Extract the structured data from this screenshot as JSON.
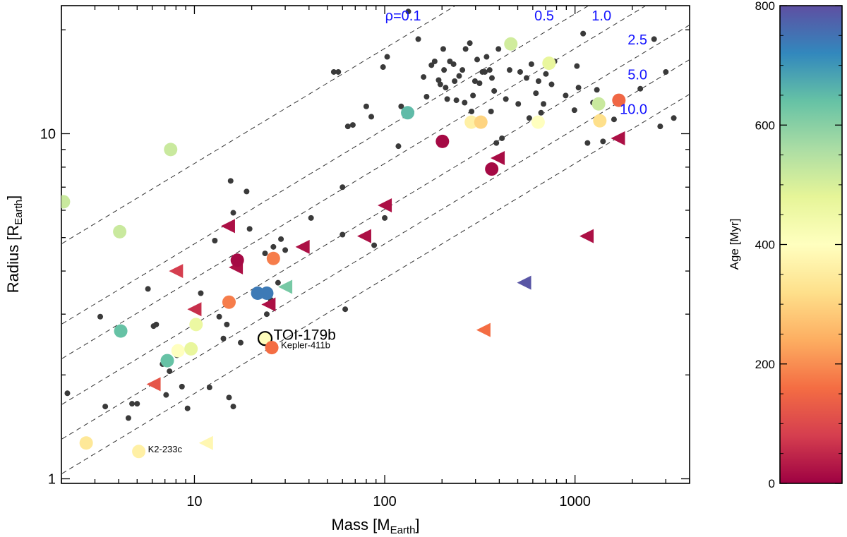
{
  "chart_data": {
    "type": "scatter",
    "title": "",
    "xlabel": "Mass [M",
    "xlabel_sub": "Earth",
    "xlabel_close": "]",
    "ylabel": "Radius [R",
    "ylabel_sub": "Earth",
    "ylabel_close": "]",
    "xscale": "log",
    "yscale": "log",
    "xlim": [
      2,
      4000
    ],
    "ylim": [
      0.97,
      23.5
    ],
    "x_tick_labels": [
      {
        "value": 10,
        "label": "10"
      },
      {
        "value": 100,
        "label": "100"
      },
      {
        "value": 1000,
        "label": "1000"
      }
    ],
    "y_tick_labels": [
      {
        "value": 1,
        "label": "1"
      },
      {
        "value": 10,
        "label": "10"
      }
    ],
    "density_lines": [
      {
        "rho": 0.1,
        "label": "ρ=0.1"
      },
      {
        "rho": 0.5,
        "label": "0.5"
      },
      {
        "rho": 1.0,
        "label": "1.0"
      },
      {
        "rho": 2.5,
        "label": "2.5"
      },
      {
        "rho": 5.0,
        "label": "5.0"
      },
      {
        "rho": 10.0,
        "label": "10.0"
      }
    ],
    "density_label_color": "#1414ff",
    "colorbar": {
      "label": "Age [Myr]",
      "range": [
        0,
        800
      ],
      "ticks": [
        0,
        200,
        400,
        600,
        800
      ],
      "stops": [
        "#9e0142",
        "#d53e4f",
        "#f46d43",
        "#fdae61",
        "#fee08b",
        "#ffffbf",
        "#e6f598",
        "#abdda4",
        "#66c2a5",
        "#3288bd",
        "#5e4fa2"
      ]
    },
    "background_planets": [
      [
        2.15,
        1.77
      ],
      [
        3.2,
        2.95
      ],
      [
        3.4,
        1.62
      ],
      [
        4.5,
        1.5
      ],
      [
        4.7,
        1.65
      ],
      [
        5.0,
        1.65
      ],
      [
        5.7,
        3.55
      ],
      [
        6.1,
        2.77
      ],
      [
        6.3,
        2.8
      ],
      [
        6.8,
        2.15
      ],
      [
        7.1,
        1.75
      ],
      [
        7.4,
        2.05
      ],
      [
        8.1,
        2.28
      ],
      [
        8.6,
        1.85
      ],
      [
        9.2,
        1.6
      ],
      [
        10.8,
        3.45
      ],
      [
        12.0,
        1.84
      ],
      [
        12.8,
        4.9
      ],
      [
        13.5,
        2.95
      ],
      [
        14.2,
        2.55
      ],
      [
        14.8,
        2.8
      ],
      [
        15.2,
        1.72
      ],
      [
        15.5,
        7.3
      ],
      [
        16.0,
        5.9
      ],
      [
        16.0,
        1.62
      ],
      [
        16.5,
        4.3
      ],
      [
        17.5,
        2.48
      ],
      [
        18.8,
        6.8
      ],
      [
        19.5,
        5.3
      ],
      [
        23.5,
        4.5
      ],
      [
        24.0,
        3.0
      ],
      [
        25.2,
        3.3
      ],
      [
        26.0,
        4.7
      ],
      [
        27.5,
        3.7
      ],
      [
        28.5,
        4.95
      ],
      [
        30.0,
        4.6
      ],
      [
        41.0,
        5.7
      ],
      [
        54.0,
        15.1
      ],
      [
        57.0,
        15.1
      ],
      [
        60.0,
        5.1
      ],
      [
        60.0,
        7.0
      ],
      [
        62.0,
        3.1
      ],
      [
        64.0,
        10.5
      ],
      [
        68.0,
        10.6
      ],
      [
        80.0,
        12.0
      ],
      [
        85.0,
        11.2
      ],
      [
        88.0,
        4.75
      ],
      [
        98.0,
        15.6
      ],
      [
        100.0,
        5.7
      ],
      [
        103.0,
        16.7
      ],
      [
        118.0,
        9.2
      ],
      [
        122.0,
        12.0
      ],
      [
        133.0,
        22.6
      ],
      [
        150.0,
        18.8
      ],
      [
        160.0,
        14.6
      ],
      [
        166.0,
        12.8
      ],
      [
        176.0,
        15.8
      ],
      [
        183.0,
        16.2
      ],
      [
        192.0,
        14.3
      ],
      [
        196.0,
        13.9
      ],
      [
        203.0,
        17.6
      ],
      [
        205.0,
        15.3
      ],
      [
        209.0,
        13.6
      ],
      [
        213.0,
        12.6
      ],
      [
        220.0,
        16.2
      ],
      [
        230.0,
        15.9
      ],
      [
        233.0,
        14.2
      ],
      [
        238.0,
        12.5
      ],
      [
        246.0,
        14.7
      ],
      [
        256.0,
        15.3
      ],
      [
        263.0,
        12.3
      ],
      [
        266.0,
        17.6
      ],
      [
        280.0,
        18.3
      ],
      [
        286.0,
        11.6
      ],
      [
        291.0,
        12.9
      ],
      [
        298.0,
        14.2
      ],
      [
        306.0,
        16.4
      ],
      [
        315.0,
        14.0
      ],
      [
        326.0,
        15.1
      ],
      [
        336.0,
        15.1
      ],
      [
        343.0,
        16.7
      ],
      [
        356.0,
        15.3
      ],
      [
        362.0,
        11.6
      ],
      [
        366.0,
        14.5
      ],
      [
        376.0,
        13.3
      ],
      [
        386.0,
        9.4
      ],
      [
        396.0,
        17.6
      ],
      [
        413.0,
        9.7
      ],
      [
        433.0,
        12.6
      ],
      [
        453.0,
        15.3
      ],
      [
        503.0,
        12.2
      ],
      [
        515.0,
        15.1
      ],
      [
        556.0,
        14.5
      ],
      [
        575.0,
        11.1
      ],
      [
        590.0,
        15.9
      ],
      [
        623.0,
        13.1
      ],
      [
        643.0,
        14.2
      ],
      [
        663.0,
        11.5
      ],
      [
        683.0,
        12.2
      ],
      [
        703.0,
        14.9
      ],
      [
        753.0,
        13.9
      ],
      [
        780.0,
        16.2
      ],
      [
        893.0,
        12.9
      ],
      [
        993.0,
        11.7
      ],
      [
        1023.0,
        15.7
      ],
      [
        1043.0,
        13.6
      ],
      [
        1103.0,
        19.5
      ],
      [
        1163.0,
        9.4
      ],
      [
        1243.0,
        12.3
      ],
      [
        1303.0,
        13.4
      ],
      [
        1403.0,
        9.5
      ],
      [
        1603.0,
        11.0
      ],
      [
        2203.0,
        13.5
      ],
      [
        2803.0,
        10.5
      ],
      [
        2603.0,
        18.8
      ],
      [
        3303.0,
        11.1
      ],
      [
        3000.0,
        15.1
      ]
    ],
    "young_planets": [
      {
        "mass": 2.05,
        "radius": 6.35,
        "age": 520,
        "marker": "circle"
      },
      {
        "mass": 2.7,
        "radius": 1.27,
        "age": 340,
        "marker": "circle"
      },
      {
        "mass": 4.05,
        "radius": 5.2,
        "age": 520,
        "marker": "circle"
      },
      {
        "mass": 4.1,
        "radius": 2.68,
        "age": 640,
        "marker": "circle"
      },
      {
        "mass": 5.1,
        "radius": 1.2,
        "age": 360,
        "marker": "circle"
      },
      {
        "mass": 6.1,
        "radius": 1.88,
        "age": 120,
        "marker": "triangle"
      },
      {
        "mass": 7.2,
        "radius": 2.2,
        "age": 640,
        "marker": "circle"
      },
      {
        "mass": 7.5,
        "radius": 9.0,
        "age": 520,
        "marker": "circle"
      },
      {
        "mass": 8.0,
        "radius": 4.0,
        "age": 80,
        "marker": "triangle"
      },
      {
        "mass": 8.2,
        "radius": 2.35,
        "age": 400,
        "marker": "circle"
      },
      {
        "mass": 9.6,
        "radius": 2.38,
        "age": 470,
        "marker": "circle"
      },
      {
        "mass": 10.0,
        "radius": 3.1,
        "age": 60,
        "marker": "triangle"
      },
      {
        "mass": 10.2,
        "radius": 2.8,
        "age": 460,
        "marker": "circle"
      },
      {
        "mass": 11.5,
        "radius": 1.27,
        "age": 380,
        "marker": "triangle"
      },
      {
        "mass": 15.0,
        "radius": 5.4,
        "age": 20,
        "marker": "triangle"
      },
      {
        "mass": 15.2,
        "radius": 3.25,
        "age": 180,
        "marker": "circle"
      },
      {
        "mass": 16.5,
        "radius": 4.1,
        "age": 20,
        "marker": "triangle"
      },
      {
        "mass": 16.8,
        "radius": 4.3,
        "age": 10,
        "marker": "circle"
      },
      {
        "mass": 21.5,
        "radius": 3.45,
        "age": 740,
        "marker": "circle"
      },
      {
        "mass": 24.0,
        "radius": 3.45,
        "age": 740,
        "marker": "circle"
      },
      {
        "mass": 24.5,
        "radius": 3.2,
        "age": 20,
        "marker": "triangle"
      },
      {
        "mass": 26.0,
        "radius": 4.35,
        "age": 180,
        "marker": "circle"
      },
      {
        "mass": 30.0,
        "radius": 3.6,
        "age": 620,
        "marker": "triangle"
      },
      {
        "mass": 37.0,
        "radius": 4.7,
        "age": 20,
        "marker": "triangle"
      },
      {
        "mass": 78.0,
        "radius": 5.05,
        "age": 20,
        "marker": "triangle"
      },
      {
        "mass": 100.0,
        "radius": 6.2,
        "age": 20,
        "marker": "triangle"
      },
      {
        "mass": 132.0,
        "radius": 11.5,
        "age": 650,
        "marker": "circle"
      },
      {
        "mass": 201.0,
        "radius": 9.5,
        "age": 10,
        "marker": "circle"
      },
      {
        "mass": 285.0,
        "radius": 10.8,
        "age": 360,
        "marker": "circle"
      },
      {
        "mass": 320.0,
        "radius": 10.8,
        "age": 300,
        "marker": "circle"
      },
      {
        "mass": 330.0,
        "radius": 2.7,
        "age": 160,
        "marker": "triangle"
      },
      {
        "mass": 365.0,
        "radius": 7.9,
        "age": 10,
        "marker": "circle"
      },
      {
        "mass": 392.0,
        "radius": 8.5,
        "age": 15,
        "marker": "triangle"
      },
      {
        "mass": 460.0,
        "radius": 18.2,
        "age": 510,
        "marker": "circle"
      },
      {
        "mass": 540.0,
        "radius": 3.7,
        "age": 790,
        "marker": "triangle"
      },
      {
        "mass": 640.0,
        "radius": 10.8,
        "age": 400,
        "marker": "circle"
      },
      {
        "mass": 730.0,
        "radius": 16.0,
        "age": 470,
        "marker": "circle"
      },
      {
        "mass": 1150.0,
        "radius": 5.05,
        "age": 20,
        "marker": "triangle"
      },
      {
        "mass": 1330.0,
        "radius": 12.2,
        "age": 520,
        "marker": "circle"
      },
      {
        "mass": 1350.0,
        "radius": 10.9,
        "age": 320,
        "marker": "circle"
      },
      {
        "mass": 1680.0,
        "radius": 9.7,
        "age": 20,
        "marker": "triangle"
      },
      {
        "mass": 1700.0,
        "radius": 12.5,
        "age": 150,
        "marker": "circle"
      }
    ],
    "annotations": [
      {
        "label": "TOI-179b",
        "mass": 23.5,
        "radius": 2.55,
        "age": 395,
        "marker": "circle",
        "highlight": true,
        "size": "large"
      },
      {
        "label": "Kepler-411b",
        "mass": 25.5,
        "radius": 2.4,
        "age": 160,
        "marker": "circle",
        "highlight": false,
        "size": "small"
      },
      {
        "label": "K2-233c",
        "mass": 5.1,
        "radius": 1.2,
        "age": 360,
        "marker": "none",
        "highlight": false,
        "size": "small"
      }
    ]
  }
}
